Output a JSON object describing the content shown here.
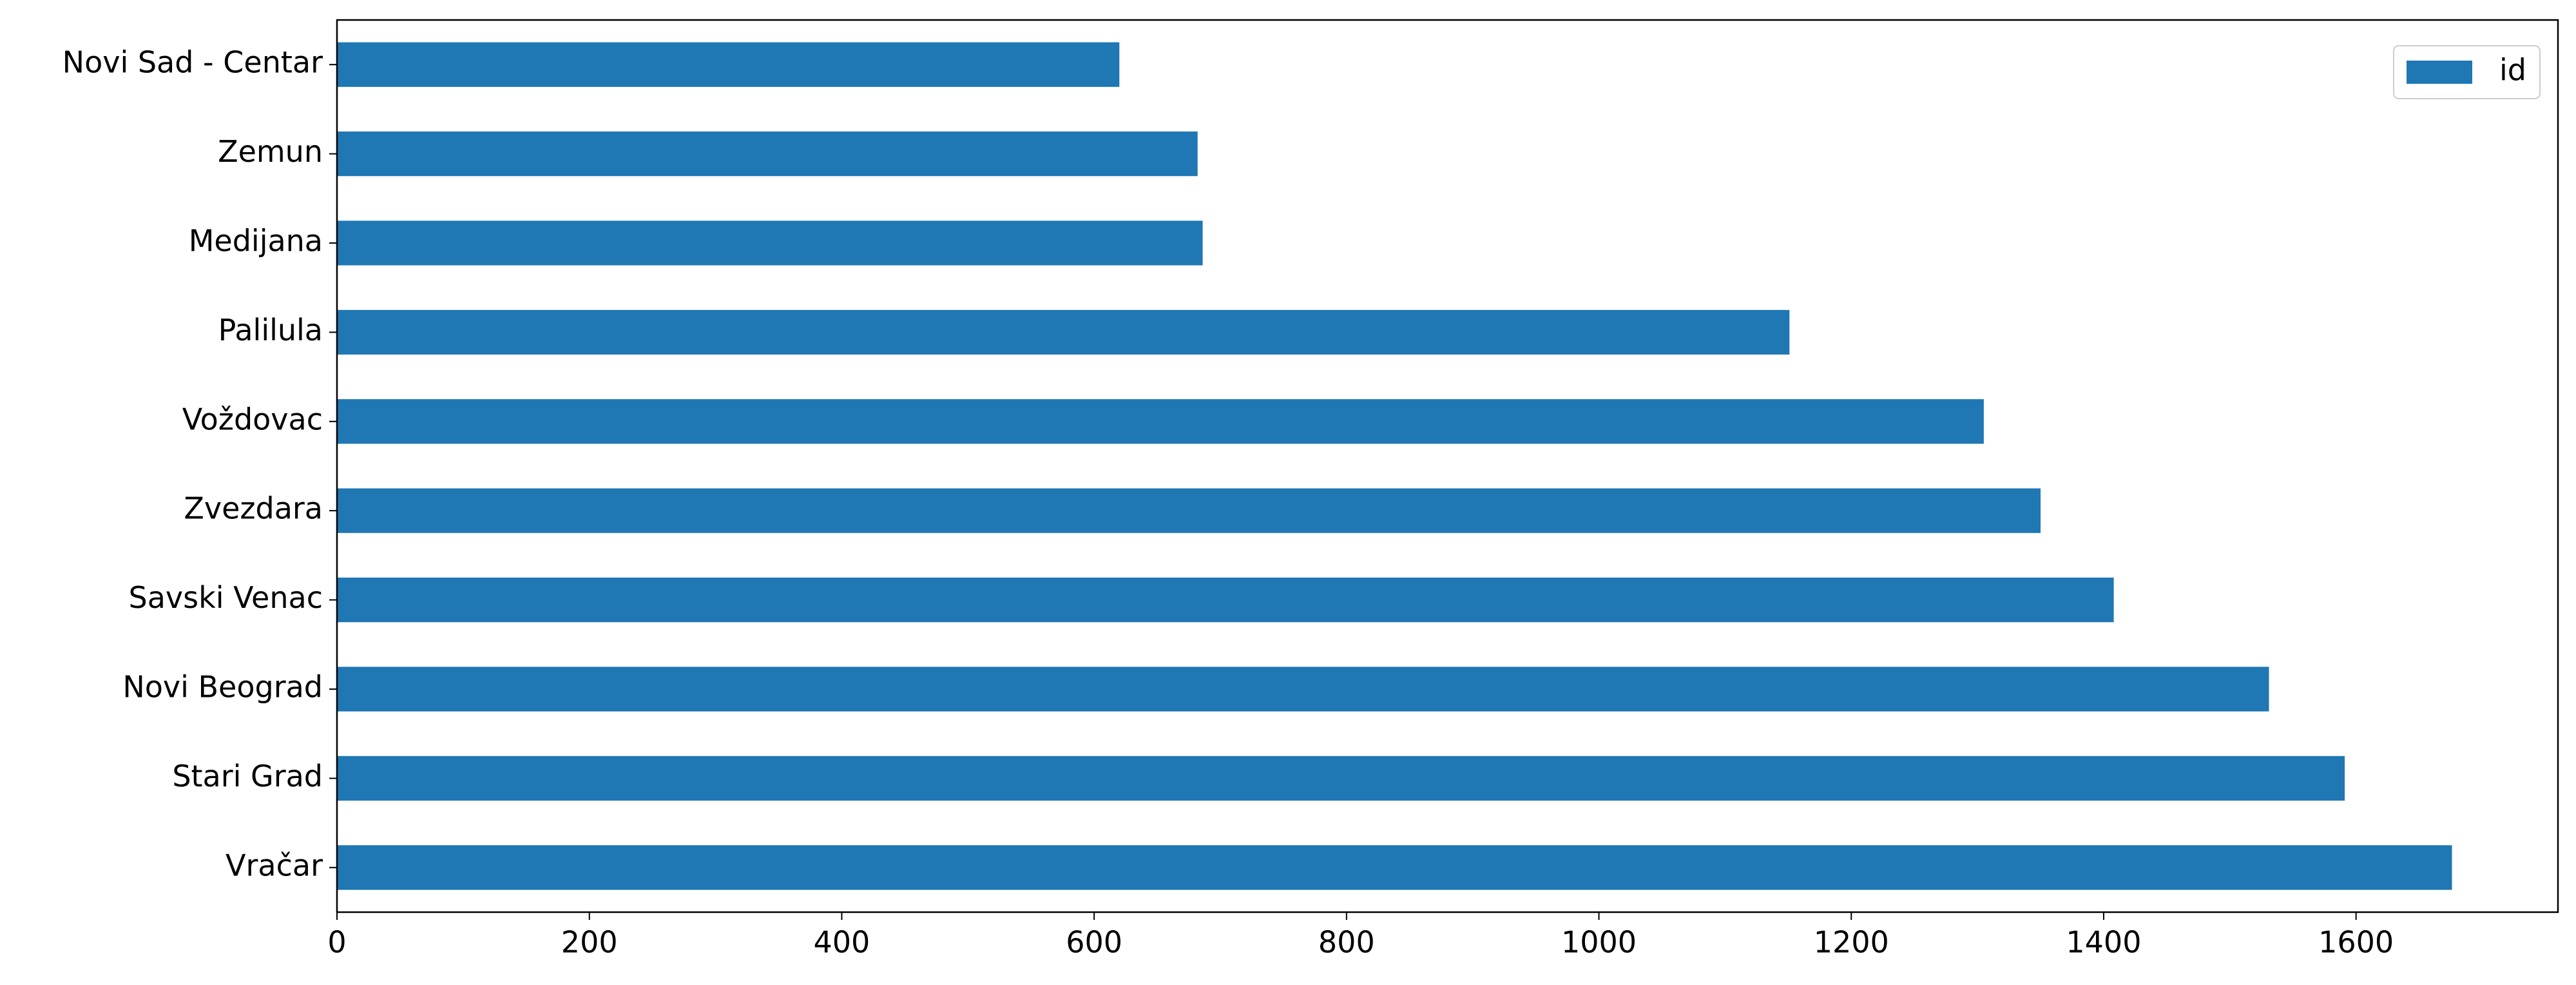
{
  "chart_data": {
    "type": "barh",
    "categories": [
      "Vračar",
      "Stari Grad",
      "Novi Beograd",
      "Savski Venac",
      "Zvezdara",
      "Voždovac",
      "Palilula",
      "Medijana",
      "Zemun",
      "Novi Sad - Centar"
    ],
    "series": [
      {
        "name": "id",
        "color": "#1f77b4",
        "values": [
          1676,
          1591,
          1531,
          1408,
          1350,
          1305,
          1151,
          686,
          682,
          620
        ]
      }
    ],
    "xlim": [
      0,
      1760
    ],
    "xticks": [
      0,
      200,
      400,
      600,
      800,
      1000,
      1200,
      1400,
      1600
    ],
    "legend": "upper right"
  }
}
